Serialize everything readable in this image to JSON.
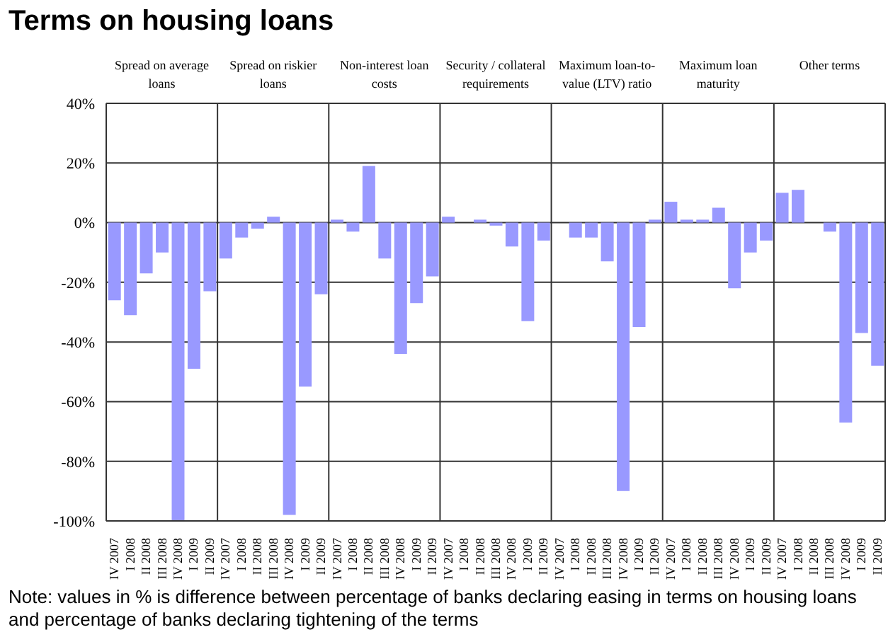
{
  "chart_data": {
    "type": "bar",
    "title": "Terms on housing loans",
    "categories": [
      "IV 2007",
      "I 2008",
      "II 2008",
      "III 2008",
      "IV 2008",
      "I 2009",
      "II 2009",
      "IV 2007",
      "I 2008",
      "II 2008",
      "III 2008",
      "IV 2008",
      "I 2009",
      "II 2009",
      "IV 2007",
      "I 2008",
      "II 2008",
      "III 2008",
      "IV 2008",
      "I 2009",
      "II 2009",
      "IV 2007",
      "I 2008",
      "II 2008",
      "III 2008",
      "IV 2008",
      "I 2009",
      "II 2009",
      "IV 2007",
      "I 2008",
      "II 2008",
      "III 2008",
      "IV 2008",
      "I 2009",
      "II 2009",
      "IV 2007",
      "I 2008",
      "II 2008",
      "III 2008",
      "IV 2008",
      "I 2009",
      "II 2009",
      "IV 2007",
      "I 2008",
      "II 2008",
      "III 2008",
      "IV 2008",
      "I 2009",
      "II 2009"
    ],
    "values": [
      -26,
      -31,
      -17,
      -10,
      -100,
      -49,
      -23,
      -12,
      -5,
      -2,
      2,
      -98,
      -55,
      -24,
      1,
      -3,
      19,
      -12,
      -44,
      -27,
      -18,
      2,
      0,
      1,
      -1,
      -8,
      -33,
      -6,
      0,
      -5,
      -5,
      -13,
      -90,
      -35,
      1,
      7,
      1,
      1,
      5,
      -22,
      -10,
      -6,
      10,
      11,
      0,
      -3,
      -67,
      -37,
      -48
    ],
    "color": "#9999ff",
    "ylim": [
      -100,
      40
    ],
    "yticks": [
      {
        "value": -100,
        "label": "-100%"
      },
      {
        "value": -80,
        "label": "-80%"
      },
      {
        "value": -60,
        "label": "-60%"
      },
      {
        "value": -40,
        "label": "-40%"
      },
      {
        "value": -20,
        "label": "-20%"
      },
      {
        "value": 0,
        "label": "0%"
      },
      {
        "value": 20,
        "label": "20%"
      },
      {
        "value": 40,
        "label": "40%"
      }
    ],
    "grid": true,
    "annotations": [
      "Spread on average loans",
      "Spread on riskier loans",
      "Non-interest loan costs",
      "Security / collateral requirements",
      "Maximum loan-to-value (LTV) ratio",
      "Maximum loan maturity",
      "Other terms",
      "Note: values in % is difference between percentage of banks declaring easing in terms on housing loans and percentage of banks declaring tightening of the terms"
    ]
  }
}
